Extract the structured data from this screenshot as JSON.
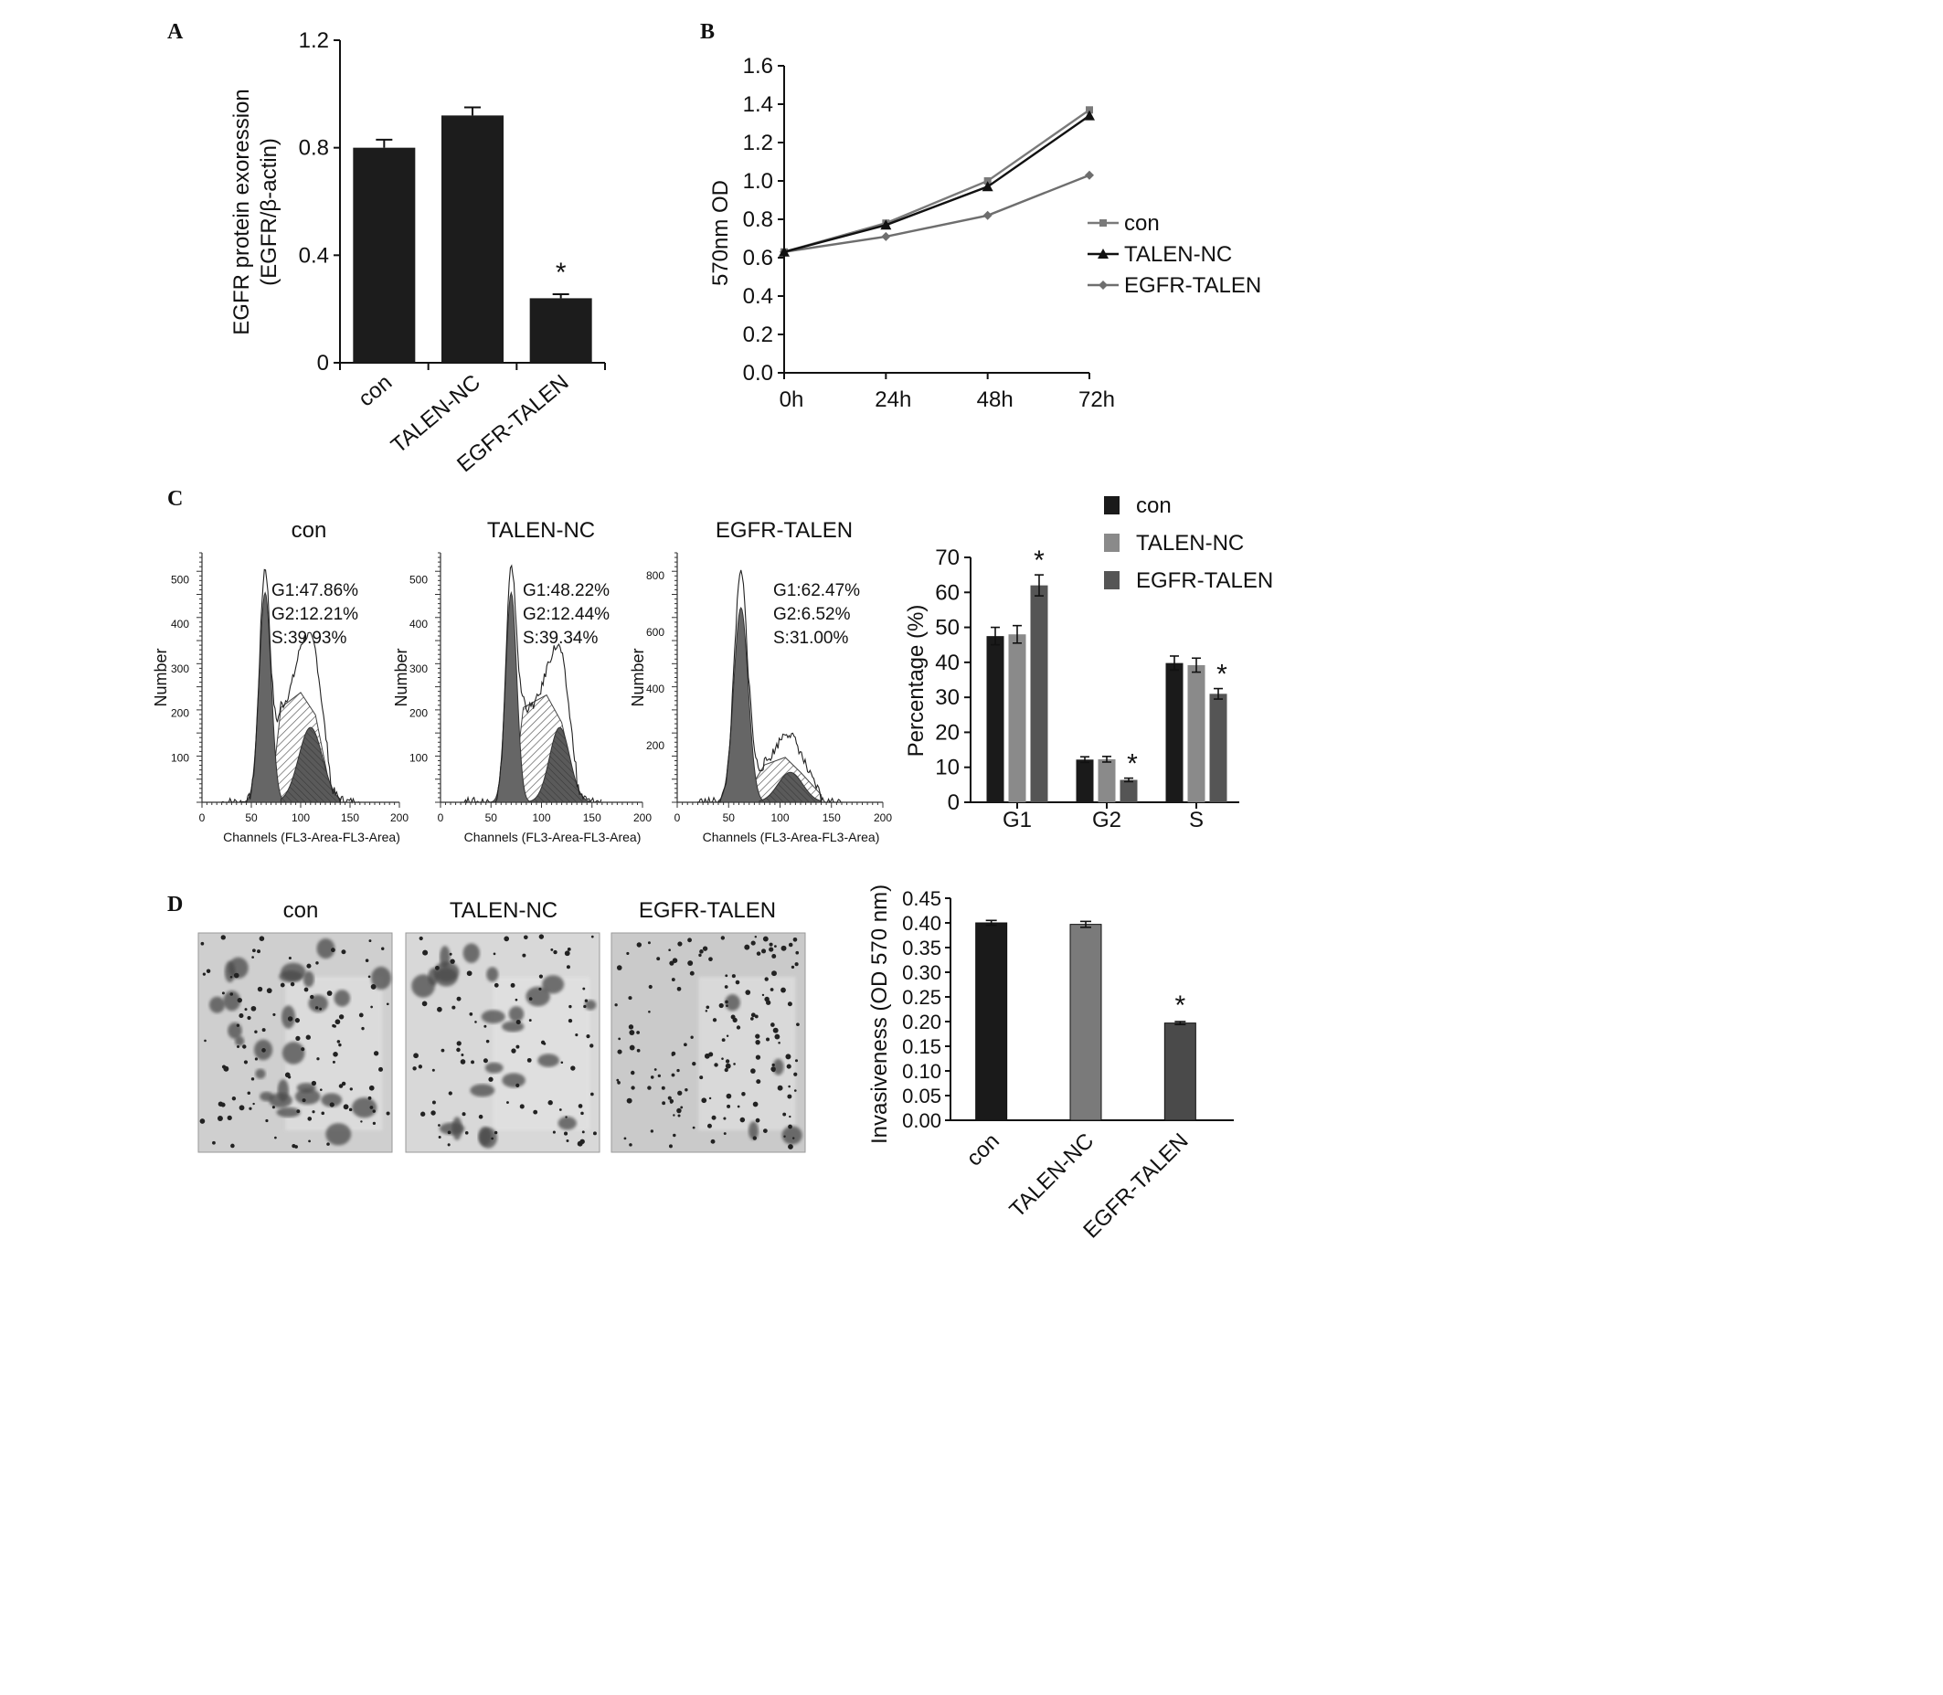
{
  "panels": {
    "A": {
      "letter": "A",
      "chart_data": {
        "type": "bar",
        "categories": [
          "con",
          "TALEN-NC",
          "EGFR-TALEN"
        ],
        "values": [
          0.8,
          0.92,
          0.24
        ],
        "errors": [
          0.03,
          0.03,
          0.015
        ],
        "significance": [
          "",
          "",
          "*"
        ],
        "ylabel_line1": "EGFR protein exoression",
        "ylabel_line2": "(EGFR/β-actin)",
        "ylim": [
          0,
          1.2
        ],
        "yticks": [
          0,
          0.4,
          0.8,
          1.2
        ],
        "ytick_labels": [
          "0",
          "0.4",
          "0.8",
          "1.2"
        ],
        "bar_color": "#1c1c1c"
      }
    },
    "B": {
      "letter": "B",
      "chart_data": {
        "type": "line",
        "x": [
          "0h",
          "24h",
          "48h",
          "72h"
        ],
        "ylabel": "570nm OD",
        "ylim": [
          0,
          1.6
        ],
        "yticks": [
          "0.0",
          "0.2",
          "0.4",
          "0.6",
          "0.8",
          "1.0",
          "1.2",
          "1.4",
          "1.6"
        ],
        "legend_position": "right",
        "series": [
          {
            "name": "con",
            "values": [
              0.63,
              0.78,
              1.0,
              1.37
            ],
            "color": "#7a7a7a",
            "marker": "square"
          },
          {
            "name": "TALEN-NC",
            "values": [
              0.63,
              0.77,
              0.97,
              1.34
            ],
            "color": "#111111",
            "marker": "triangle"
          },
          {
            "name": "EGFR-TALEN",
            "values": [
              0.63,
              0.71,
              0.82,
              1.03
            ],
            "color": "#6e6e6e",
            "marker": "diamond"
          }
        ]
      }
    },
    "C": {
      "letter": "C",
      "histograms": [
        {
          "title": "con",
          "ylabel": "Number",
          "xlabel": "Channels (FL3-Area-FL3-Area)",
          "xticks": [
            "0",
            "50",
            "100",
            "150",
            "200"
          ],
          "yticks": [
            "100",
            "200",
            "300",
            "400",
            "500"
          ],
          "ymax": 560,
          "annotations": [
            "G1:47.86%",
            "G2:12.21%",
            "S:39.93%"
          ]
        },
        {
          "title": "TALEN-NC",
          "ylabel": "Number",
          "xlabel": "Channels (FL3-Area-FL3-Area)",
          "xticks": [
            "0",
            "50",
            "100",
            "150",
            "200"
          ],
          "yticks": [
            "100",
            "200",
            "300",
            "400",
            "500"
          ],
          "ymax": 560,
          "annotations": [
            "G1:48.22%",
            "G2:12.44%",
            "S:39.34%"
          ]
        },
        {
          "title": "EGFR-TALEN",
          "ylabel": "Number",
          "xlabel": "Channels (FL3-Area-FL3-Area)",
          "xticks": [
            "0",
            "50",
            "100",
            "150",
            "200"
          ],
          "yticks": [
            "200",
            "400",
            "600",
            "800"
          ],
          "ymax": 880,
          "annotations": [
            "G1:62.47%",
            "G2:6.52%",
            "S:31.00%"
          ]
        }
      ],
      "chart_data": {
        "type": "bar",
        "categories": [
          "G1",
          "G2",
          "S"
        ],
        "ylabel": "Percentage (%)",
        "ylim": [
          0,
          70
        ],
        "yticks": [
          "0",
          "10",
          "20",
          "30",
          "40",
          "50",
          "60",
          "70"
        ],
        "legend_position": "top-right",
        "series": [
          {
            "name": "con",
            "values": [
              47.5,
              12.2,
              39.8
            ],
            "errors": [
              2.5,
              0.8,
              2.0
            ],
            "color": "#1a1a1a"
          },
          {
            "name": "TALEN-NC",
            "values": [
              48.0,
              12.3,
              39.2
            ],
            "errors": [
              2.5,
              0.8,
              2.0
            ],
            "color": "#8a8a8a"
          },
          {
            "name": "EGFR-TALEN",
            "values": [
              62.0,
              6.4,
              31.0
            ],
            "errors": [
              3.0,
              0.5,
              1.5
            ],
            "color": "#555555"
          }
        ],
        "significance": [
          "*",
          "*",
          "*"
        ]
      }
    },
    "D": {
      "letter": "D",
      "micrographs": [
        "con",
        "TALEN-NC",
        "EGFR-TALEN"
      ],
      "chart_data": {
        "type": "bar",
        "categories": [
          "con",
          "TALEN-NC",
          "EGFR-TALEN"
        ],
        "values": [
          0.4,
          0.397,
          0.197
        ],
        "errors": [
          0.005,
          0.006,
          0.003
        ],
        "significance": [
          "",
          "",
          "*"
        ],
        "ylabel": "Invasiveness (OD 570 nm)",
        "ylim": [
          0,
          0.45
        ],
        "yticks": [
          "0.00",
          "0.05",
          "0.10",
          "0.15",
          "0.20",
          "0.25",
          "0.30",
          "0.35",
          "0.40",
          "0.45"
        ],
        "colors": [
          "#1a1a1a",
          "#7a7a7a",
          "#4a4a4a"
        ]
      }
    }
  }
}
